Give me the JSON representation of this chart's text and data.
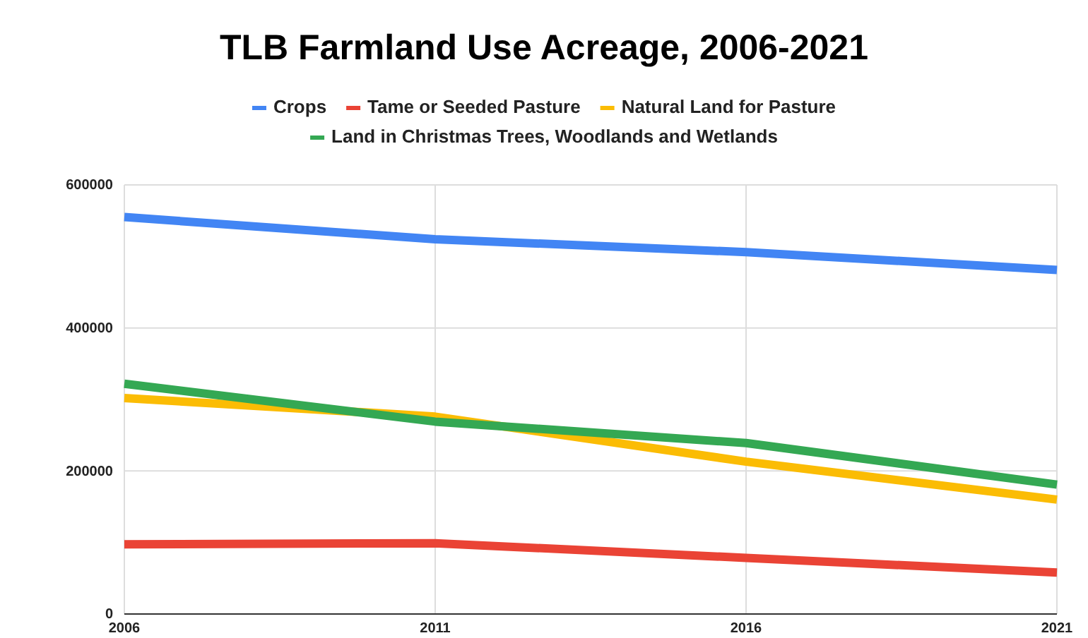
{
  "chart_data": {
    "type": "line",
    "title": "TLB Farmland Use Acreage, 2006-2021",
    "categories": [
      "2006",
      "2011",
      "2016",
      "2021"
    ],
    "series": [
      {
        "name": "Crops",
        "color": "#4285f4",
        "values": [
          555000,
          524000,
          506000,
          481000
        ]
      },
      {
        "name": "Tame or Seeded Pasture",
        "color": "#ea4335",
        "values": [
          97500,
          99000,
          78500,
          58000
        ]
      },
      {
        "name": "Natural Land for Pasture",
        "color": "#fbbc04",
        "values": [
          302000,
          276000,
          213000,
          160000
        ]
      },
      {
        "name": "Land in Christmas Trees, Woodlands and Wetlands",
        "color": "#34a853",
        "values": [
          322000,
          269000,
          239000,
          181000
        ]
      }
    ],
    "ylim": [
      0,
      600000
    ],
    "yticks": [
      0,
      200000,
      400000,
      600000
    ],
    "grid": true,
    "legend": "top",
    "marker": "none",
    "line_style": "solid"
  }
}
